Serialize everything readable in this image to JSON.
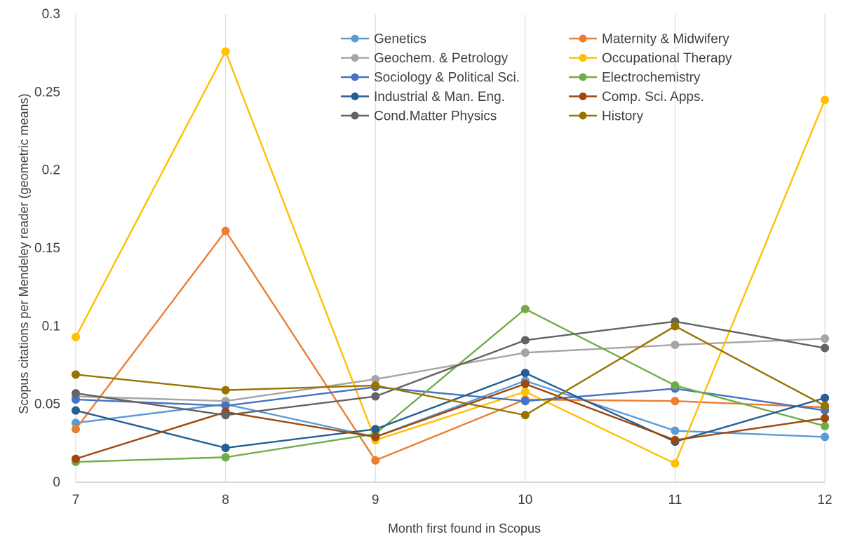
{
  "chart_data": {
    "type": "line",
    "title": "",
    "xlabel": "Month first found in Scopus",
    "ylabel": "Scopus citations per Mendeley reader (geometric means)",
    "x": [
      7,
      8,
      9,
      10,
      11,
      12
    ],
    "x_ticks": [
      "7",
      "8",
      "9",
      "10",
      "11",
      "12"
    ],
    "xlim": [
      7,
      12
    ],
    "ylim": [
      0,
      0.3
    ],
    "y_ticks": [
      "0",
      "0.05",
      "0.1",
      "0.15",
      "0.2",
      "0.25",
      "0.3"
    ],
    "grid": "vertical gridlines at each x tick",
    "legend_position": "top-right",
    "series": [
      {
        "name": "Genetics",
        "color": "#5B9BD5",
        "values": [
          0.038,
          0.05,
          0.029,
          0.065,
          0.033,
          0.029
        ]
      },
      {
        "name": "Maternity & Midwifery",
        "color": "#ED7D31",
        "values": [
          0.034,
          0.161,
          0.014,
          0.053,
          0.052,
          0.048
        ]
      },
      {
        "name": "Geochem. & Petrology",
        "color": "#A5A5A5",
        "values": [
          0.055,
          0.052,
          0.066,
          0.083,
          0.088,
          0.092
        ]
      },
      {
        "name": "Occupational Therapy",
        "color": "#FFC000",
        "values": [
          0.093,
          0.276,
          0.027,
          0.058,
          0.012,
          0.245
        ]
      },
      {
        "name": "Sociology & Political Sci.",
        "color": "#4472C4",
        "values": [
          0.053,
          0.049,
          0.061,
          0.052,
          0.06,
          0.046
        ]
      },
      {
        "name": "Electrochemistry",
        "color": "#70AD47",
        "values": [
          0.013,
          0.016,
          0.031,
          0.111,
          0.062,
          0.036
        ]
      },
      {
        "name": "Industrial & Man. Eng.",
        "color": "#255E91",
        "values": [
          0.046,
          0.022,
          0.034,
          0.07,
          0.026,
          0.054
        ]
      },
      {
        "name": "Comp. Sci. Apps.",
        "color": "#9E480E",
        "values": [
          0.015,
          0.045,
          0.029,
          0.063,
          0.027,
          0.041
        ]
      },
      {
        "name": "Cond.Matter Physics",
        "color": "#636363",
        "values": [
          0.057,
          0.043,
          0.055,
          0.091,
          0.103,
          0.086
        ]
      },
      {
        "name": "History",
        "color": "#997300",
        "values": [
          0.069,
          0.059,
          0.062,
          0.043,
          0.1,
          0.049
        ]
      }
    ]
  }
}
